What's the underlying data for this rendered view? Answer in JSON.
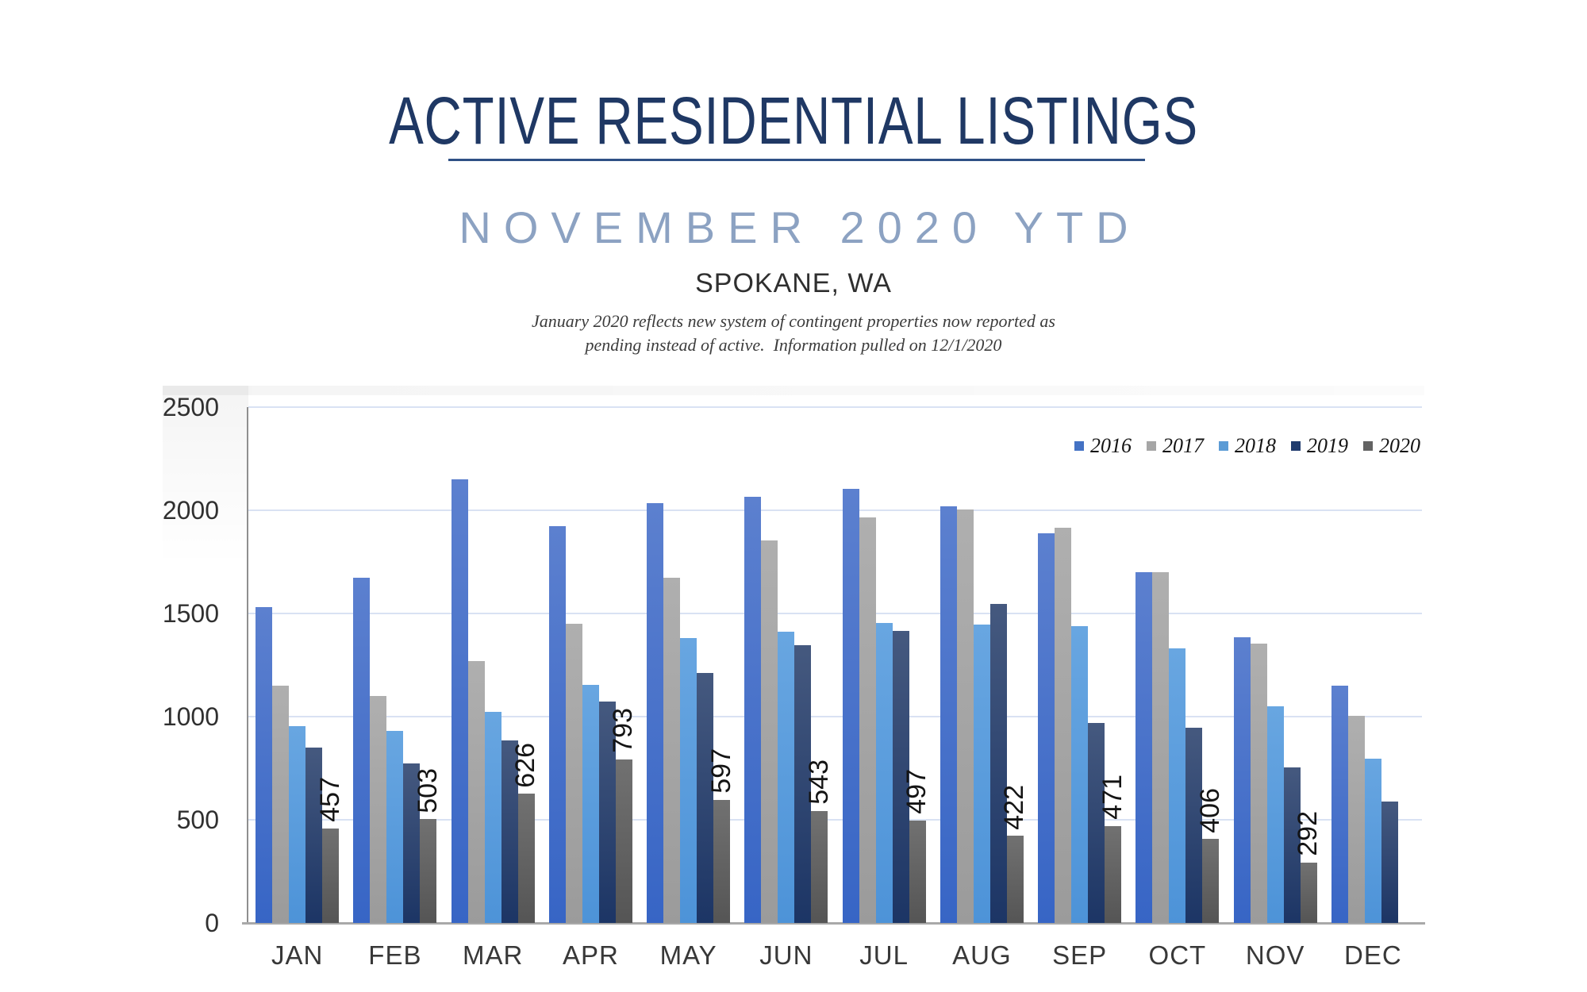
{
  "header": {
    "title": "ACTIVE RESIDENTIAL LISTINGS",
    "subtitle": "NOVEMBER 2020 YTD",
    "location": "SPOKANE, WA",
    "note_line1": "January 2020 reflects new system of contingent properties now reported as",
    "note_line2": "pending instead of active.  Information pulled on 12/1/2020"
  },
  "colors": {
    "title_navy": "#1F3864",
    "subtitle_blue": "#8CA2C2",
    "underline_navy": "#2F5086",
    "gridline": "#D9E2F3",
    "axis_gray": "#8F8F8F"
  },
  "chart_data": {
    "type": "bar",
    "title": "",
    "categories": [
      "JAN",
      "FEB",
      "MAR",
      "APR",
      "MAY",
      "JUN",
      "JUL",
      "AUG",
      "SEP",
      "OCT",
      "NOV",
      "DEC"
    ],
    "series": [
      {
        "name": "2016",
        "legend_color": "#4472C4",
        "bar_top": "#5C80CF",
        "bar_bottom": "#3765C5",
        "values": [
          1530,
          1675,
          2150,
          1925,
          2035,
          2065,
          2105,
          2020,
          1890,
          1700,
          1385,
          1150
        ]
      },
      {
        "name": "2017",
        "legend_color": "#A6A6A6",
        "bar_top": "#AFAFAF",
        "bar_bottom": "#9B9B9B",
        "values": [
          1150,
          1100,
          1270,
          1450,
          1675,
          1855,
          1965,
          2005,
          1915,
          1700,
          1355,
          1005
        ]
      },
      {
        "name": "2018",
        "legend_color": "#5B9BD5",
        "bar_top": "#68A6E1",
        "bar_bottom": "#4D93D8",
        "values": [
          955,
          930,
          1025,
          1155,
          1380,
          1410,
          1455,
          1445,
          1440,
          1330,
          1050,
          795
        ]
      },
      {
        "name": "2019",
        "legend_color": "#203C6E",
        "bar_top": "#45597F",
        "bar_bottom": "#1C3565",
        "values": [
          850,
          775,
          885,
          1075,
          1210,
          1345,
          1415,
          1545,
          970,
          945,
          755,
          590
        ]
      },
      {
        "name": "2020",
        "legend_color": "#636363",
        "bar_top": "#717171",
        "bar_bottom": "#555555",
        "values": [
          457,
          503,
          626,
          793,
          597,
          543,
          497,
          422,
          471,
          406,
          292,
          null
        ],
        "show_data_labels": true
      }
    ],
    "data_labels_2020": [
      "457",
      "503",
      "626",
      "793",
      "597",
      "543",
      "497",
      "422",
      "471",
      "406",
      "292"
    ],
    "ylim": [
      0,
      2500
    ],
    "ytick_step": 500,
    "yticks": [
      0,
      500,
      1000,
      1500,
      2000,
      2500
    ],
    "grid": true,
    "xlabel": "",
    "ylabel": "",
    "legend_position": "top-right"
  }
}
